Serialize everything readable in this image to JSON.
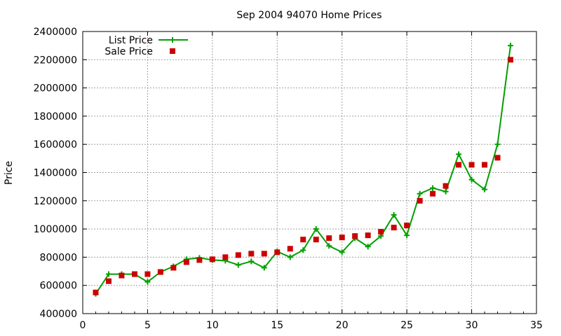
{
  "chart_data": {
    "type": "line",
    "title": "Sep 2004 94070 Home Prices",
    "xlabel": "",
    "ylabel": "Price",
    "xlim": [
      0,
      35
    ],
    "ylim": [
      400000,
      2400000
    ],
    "xticks": [
      0,
      5,
      10,
      15,
      20,
      25,
      30,
      35
    ],
    "yticks": [
      400000,
      600000,
      800000,
      1000000,
      1200000,
      1400000,
      1600000,
      1800000,
      2000000,
      2200000,
      2400000
    ],
    "grid": true,
    "legend_position": "top-left",
    "series": [
      {
        "name": "List Price",
        "style": "line+cross",
        "color": "#00a000",
        "x": [
          1,
          2,
          3,
          4,
          5,
          6,
          7,
          8,
          9,
          10,
          11,
          12,
          13,
          14,
          15,
          16,
          17,
          18,
          19,
          20,
          21,
          22,
          23,
          24,
          25,
          26,
          27,
          28,
          29,
          30,
          31,
          32,
          33
        ],
        "values": [
          540000,
          680000,
          680000,
          680000,
          625000,
          695000,
          735000,
          785000,
          795000,
          780000,
          775000,
          745000,
          770000,
          725000,
          840000,
          800000,
          850000,
          1000000,
          880000,
          835000,
          935000,
          875000,
          950000,
          1100000,
          955000,
          1250000,
          1290000,
          1265000,
          1530000,
          1350000,
          1280000,
          1600000,
          2300000
        ]
      },
      {
        "name": "Sale Price",
        "style": "square",
        "color": "#cc0000",
        "x": [
          1,
          2,
          3,
          4,
          5,
          6,
          7,
          8,
          9,
          10,
          11,
          12,
          13,
          14,
          15,
          16,
          17,
          18,
          19,
          20,
          21,
          22,
          23,
          24,
          25,
          26,
          27,
          28,
          29,
          30,
          31,
          32,
          33
        ],
        "values": [
          550000,
          630000,
          670000,
          680000,
          680000,
          695000,
          725000,
          765000,
          780000,
          785000,
          800000,
          815000,
          825000,
          825000,
          835000,
          860000,
          925000,
          925000,
          935000,
          940000,
          950000,
          955000,
          980000,
          1010000,
          1025000,
          1200000,
          1250000,
          1305000,
          1455000,
          1455000,
          1455000,
          1505000,
          2200000
        ]
      }
    ]
  }
}
